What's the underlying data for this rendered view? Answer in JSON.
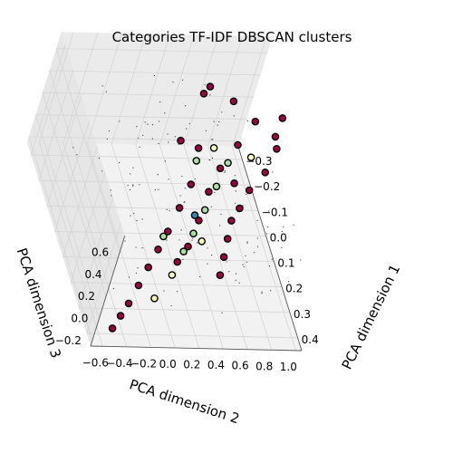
{
  "chart_data": {
    "type": "scatter",
    "projection": "3d",
    "title": "Categories TF-IDF DBSCAN clusters",
    "xlabel": "PCA dimension 1",
    "ylabel": "PCA dimension 2",
    "zlabel": "PCA dimension 3",
    "xlim": [
      -0.35,
      0.45
    ],
    "ylim": [
      -0.7,
      1.05
    ],
    "zlim": [
      -0.25,
      0.75
    ],
    "xticks": [
      "−0.3",
      "−0.2",
      "−0.1",
      "0.0",
      "0.1",
      "0.2",
      "0.3",
      "0.4"
    ],
    "xtick_values": [
      -0.3,
      -0.2,
      -0.1,
      0.0,
      0.1,
      0.2,
      0.3,
      0.4
    ],
    "yticks": [
      "−0.6",
      "−0.4",
      "−0.2",
      "0.0",
      "0.2",
      "0.4",
      "0.6",
      "0.8",
      "1.0"
    ],
    "ytick_values": [
      -0.6,
      -0.4,
      -0.2,
      0.0,
      0.2,
      0.4,
      0.6,
      0.8,
      1.0
    ],
    "zticks": [
      "−0.2",
      "0.0",
      "0.2",
      "0.4",
      "0.6"
    ],
    "ztick_values": [
      -0.2,
      0.0,
      0.2,
      0.4,
      0.6
    ],
    "grid": true,
    "series": [
      {
        "color": "#9e0142",
        "edgecolor": "#000000",
        "points": [
          [
            -0.05,
            0.95,
            0.7
          ],
          [
            0.05,
            0.85,
            0.65
          ],
          [
            -0.02,
            0.9,
            0.6
          ],
          [
            0.1,
            0.75,
            0.55
          ],
          [
            0.15,
            0.6,
            0.5
          ],
          [
            -0.1,
            0.8,
            0.55
          ],
          [
            0.2,
            0.5,
            0.45
          ],
          [
            -0.2,
            0.7,
            0.5
          ],
          [
            0.25,
            0.4,
            0.45
          ],
          [
            0.3,
            0.35,
            0.4
          ],
          [
            0.35,
            0.3,
            0.35
          ],
          [
            0.4,
            0.25,
            0.3
          ],
          [
            -0.3,
            0.6,
            0.4
          ],
          [
            0.0,
            0.3,
            0.2
          ],
          [
            0.05,
            0.2,
            0.1
          ],
          [
            0.1,
            0.1,
            0.0
          ],
          [
            0.15,
            0.0,
            -0.05
          ],
          [
            0.2,
            -0.1,
            -0.1
          ],
          [
            0.25,
            -0.2,
            -0.15
          ],
          [
            0.3,
            -0.3,
            -0.2
          ],
          [
            0.35,
            -0.4,
            -0.2
          ],
          [
            0.4,
            -0.5,
            -0.2
          ],
          [
            -0.1,
            0.4,
            0.3
          ],
          [
            -0.15,
            0.3,
            0.25
          ],
          [
            0.0,
            0.5,
            0.35
          ],
          [
            0.05,
            0.4,
            0.25
          ],
          [
            0.12,
            0.3,
            0.15
          ],
          [
            0.18,
            0.2,
            0.05
          ],
          [
            0.22,
            0.1,
            0.0
          ],
          [
            -0.25,
            0.5,
            0.45
          ],
          [
            -0.05,
            0.65,
            0.45
          ],
          [
            0.08,
            0.55,
            0.4
          ]
        ]
      },
      {
        "color": "#abdda4",
        "edgecolor": "#000000",
        "points": [
          [
            0.05,
            0.45,
            0.3
          ],
          [
            0.1,
            0.35,
            0.2
          ],
          [
            0.15,
            0.25,
            0.1
          ],
          [
            0.0,
            0.55,
            0.4
          ],
          [
            0.2,
            0.15,
            0.05
          ],
          [
            -0.05,
            0.35,
            0.3
          ],
          [
            0.12,
            0.05,
            0.0
          ]
        ]
      },
      {
        "color": "#ffffbf",
        "edgecolor": "#000000",
        "points": [
          [
            0.02,
            0.7,
            0.5
          ],
          [
            0.18,
            0.3,
            0.1
          ],
          [
            0.25,
            0.05,
            -0.05
          ],
          [
            -0.08,
            0.5,
            0.35
          ],
          [
            0.3,
            -0.1,
            -0.15
          ]
        ]
      },
      {
        "color": "#3288bd",
        "edgecolor": "#000000",
        "points": [
          [
            0.1,
            0.28,
            0.15
          ]
        ]
      }
    ]
  }
}
